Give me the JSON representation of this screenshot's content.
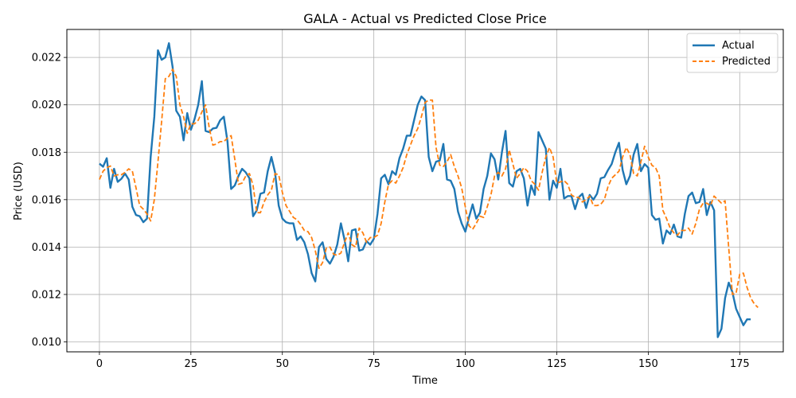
{
  "chart_data": {
    "type": "line",
    "title": "GALA - Actual vs Predicted Close Price",
    "xlabel": "Time",
    "ylabel": "Price (USD)",
    "xlim": [
      -8.9,
      186.9
    ],
    "ylim": [
      0.00958,
      0.02318
    ],
    "xticks": [
      0,
      25,
      50,
      75,
      100,
      125,
      150,
      175
    ],
    "yticks": [
      0.01,
      0.012,
      0.014,
      0.016,
      0.018,
      0.02,
      0.022
    ],
    "ytick_labels": [
      "0.010",
      "0.012",
      "0.014",
      "0.016",
      "0.018",
      "0.020",
      "0.022"
    ],
    "grid": true,
    "legend_position": "top-right",
    "series": [
      {
        "name": "Actual",
        "color": "#1f77b4",
        "style": "solid",
        "values": [
          0.01752,
          0.01739,
          0.01775,
          0.0165,
          0.0173,
          0.01675,
          0.01688,
          0.0171,
          0.01685,
          0.0157,
          0.01535,
          0.0153,
          0.01505,
          0.0152,
          0.0178,
          0.0195,
          0.0223,
          0.0219,
          0.022,
          0.0226,
          0.0216,
          0.01975,
          0.0195,
          0.0185,
          0.01965,
          0.01895,
          0.0194,
          0.02,
          0.021,
          0.0189,
          0.01885,
          0.019,
          0.01903,
          0.01935,
          0.0195,
          0.01845,
          0.01645,
          0.0166,
          0.017,
          0.0173,
          0.01715,
          0.0169,
          0.0153,
          0.01555,
          0.01625,
          0.0163,
          0.0172,
          0.0178,
          0.01715,
          0.01575,
          0.0152,
          0.01505,
          0.015,
          0.015,
          0.0143,
          0.01445,
          0.0142,
          0.0137,
          0.0129,
          0.01255,
          0.014,
          0.0142,
          0.0135,
          0.0133,
          0.0136,
          0.0141,
          0.015,
          0.0143,
          0.0134,
          0.0147,
          0.01475,
          0.01385,
          0.0139,
          0.01425,
          0.0141,
          0.01435,
          0.0154,
          0.0169,
          0.01705,
          0.01665,
          0.0172,
          0.01705,
          0.01775,
          0.01815,
          0.0187,
          0.0187,
          0.01935,
          0.02,
          0.02035,
          0.0202,
          0.0178,
          0.0172,
          0.0176,
          0.01765,
          0.01835,
          0.01685,
          0.0168,
          0.01645,
          0.0155,
          0.015,
          0.01465,
          0.01525,
          0.0158,
          0.0152,
          0.01545,
          0.01645,
          0.017,
          0.01795,
          0.0177,
          0.01685,
          0.018,
          0.0189,
          0.0167,
          0.01655,
          0.0172,
          0.0173,
          0.0169,
          0.01575,
          0.0166,
          0.0162,
          0.01885,
          0.0185,
          0.01815,
          0.016,
          0.0168,
          0.0165,
          0.0173,
          0.01605,
          0.01615,
          0.01615,
          0.0156,
          0.0161,
          0.01625,
          0.01565,
          0.0162,
          0.016,
          0.01625,
          0.0169,
          0.01695,
          0.01725,
          0.0175,
          0.018,
          0.0184,
          0.01725,
          0.01665,
          0.017,
          0.0179,
          0.01835,
          0.0172,
          0.0175,
          0.01735,
          0.01535,
          0.01515,
          0.0152,
          0.01415,
          0.0147,
          0.01455,
          0.01495,
          0.01445,
          0.0144,
          0.0154,
          0.01615,
          0.0163,
          0.01585,
          0.0159,
          0.01645,
          0.01535,
          0.0159,
          0.01555,
          0.0102,
          0.01055,
          0.01185,
          0.0125,
          0.0121,
          0.0114,
          0.01105,
          0.0107,
          0.01095,
          0.01095
        ]
      },
      {
        "name": "Predicted",
        "color": "#ff7f0e",
        "style": "dashed",
        "values": [
          0.01685,
          0.0172,
          0.01735,
          0.01742,
          0.017,
          0.01705,
          0.01705,
          0.01715,
          0.0173,
          0.0172,
          0.0165,
          0.01575,
          0.0156,
          0.0154,
          0.0151,
          0.016,
          0.0176,
          0.0193,
          0.0211,
          0.0212,
          0.0215,
          0.0212,
          0.02,
          0.0195,
          0.0188,
          0.0192,
          0.0192,
          0.01935,
          0.0197,
          0.02,
          0.01905,
          0.0183,
          0.01835,
          0.01845,
          0.01845,
          0.0186,
          0.0187,
          0.0177,
          0.01665,
          0.0167,
          0.017,
          0.0171,
          0.0166,
          0.01545,
          0.01545,
          0.0159,
          0.0162,
          0.0164,
          0.0171,
          0.01705,
          0.0163,
          0.01575,
          0.0155,
          0.01525,
          0.01515,
          0.01495,
          0.0147,
          0.01465,
          0.0144,
          0.01385,
          0.0131,
          0.01335,
          0.01395,
          0.014,
          0.0137,
          0.01365,
          0.01375,
          0.0142,
          0.0146,
          0.0141,
          0.014,
          0.0148,
          0.0146,
          0.0142,
          0.0144,
          0.0144,
          0.0145,
          0.015,
          0.0159,
          0.01665,
          0.0168,
          0.0167,
          0.017,
          0.01735,
          0.0179,
          0.0183,
          0.0187,
          0.019,
          0.0195,
          0.0201,
          0.0202,
          0.0202,
          0.0182,
          0.01745,
          0.0174,
          0.0176,
          0.0179,
          0.0174,
          0.017,
          0.0165,
          0.0157,
          0.0149,
          0.01475,
          0.015,
          0.0153,
          0.01525,
          0.0157,
          0.0162,
          0.017,
          0.01715,
          0.017,
          0.0173,
          0.0181,
          0.0175,
          0.0169,
          0.0171,
          0.01735,
          0.0172,
          0.0168,
          0.01665,
          0.0164,
          0.01715,
          0.0178,
          0.0182,
          0.0178,
          0.0167,
          0.01675,
          0.0168,
          0.01665,
          0.0162,
          0.0161,
          0.0161,
          0.0159,
          0.016,
          0.01615,
          0.01575,
          0.01575,
          0.0158,
          0.016,
          0.01655,
          0.0169,
          0.01705,
          0.0172,
          0.0178,
          0.0182,
          0.0179,
          0.0171,
          0.017,
          0.0176,
          0.01825,
          0.0178,
          0.01745,
          0.01735,
          0.017,
          0.01555,
          0.0152,
          0.0148,
          0.0146,
          0.0145,
          0.0147,
          0.0147,
          0.0148,
          0.01455,
          0.015,
          0.0156,
          0.01585,
          0.01585,
          0.01575,
          0.01615,
          0.016,
          0.01585,
          0.01595,
          0.01395,
          0.012,
          0.01205,
          0.01285,
          0.0129,
          0.0123,
          0.01185,
          0.0116,
          0.01145
        ]
      }
    ]
  }
}
